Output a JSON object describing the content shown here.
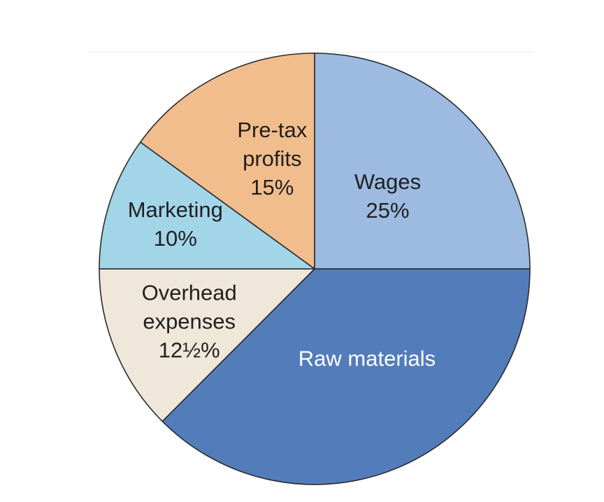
{
  "chart_data": {
    "type": "pie",
    "title": "",
    "start_angle_deg": 90,
    "direction": "clockwise",
    "slices": [
      {
        "label": "Wages",
        "value_text": "25%",
        "value": 25,
        "color": "#9dbbe0",
        "text_color": "#1f1f1f"
      },
      {
        "label": "Raw materials",
        "value_text": "",
        "value": 37.5,
        "color": "#537cbb",
        "text_color": "#ffffff"
      },
      {
        "label": "Overhead expenses",
        "value_text": "12½%",
        "value": 12.5,
        "color": "#efe8da",
        "text_color": "#1f1f1f"
      },
      {
        "label": "Marketing",
        "value_text": "10%",
        "value": 10,
        "color": "#a3d5e9",
        "text_color": "#1f1f1f"
      },
      {
        "label": "Pre-tax profits",
        "value_text": "15%",
        "value": 15,
        "color": "#f2bd8d",
        "text_color": "#1f1f1f"
      }
    ],
    "stroke_color": "#2b2b2b"
  }
}
